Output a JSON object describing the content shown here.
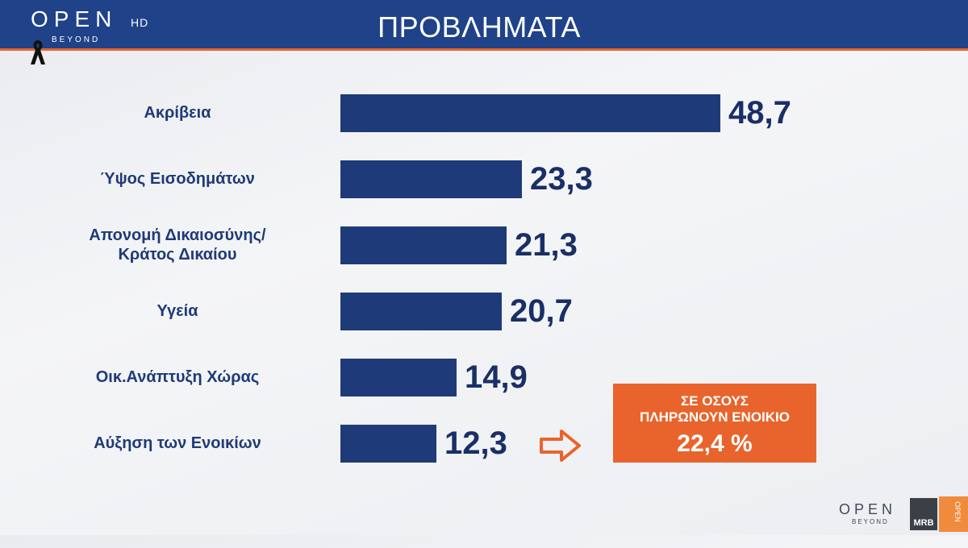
{
  "header": {
    "title": "ΠΡΟΒΛΗΜΑΤΑ",
    "logo": "OPEN",
    "logo_hd": "HD",
    "logo_sub": "BEYOND"
  },
  "chart_data": {
    "type": "bar",
    "orientation": "horizontal",
    "title": "ΠΡΟΒΛΗΜΑΤΑ",
    "categories": [
      "Ακρίβεια",
      "Ύψος Εισοδημάτων",
      "Απονομή Δικαιοσύνης/ Κράτος Δικαίου",
      "Υγεία",
      "Οικ.Ανάπτυξη Χώρας",
      "Αύξηση των Ενοικίων"
    ],
    "values": [
      48.7,
      23.3,
      21.3,
      20.7,
      14.9,
      12.3
    ],
    "value_labels": [
      "48,7",
      "23,3",
      "21,3",
      "20,7",
      "14,9",
      "12,3"
    ],
    "bar_color": "#1f3a78",
    "grid": false
  },
  "callout": {
    "line1": "ΣΕ ΟΣΟΥΣ",
    "line2": "ΠΛΗΡΩΝΟΥΝ ΕΝΟΙΚΙΟ",
    "value": "22,4 %",
    "color": "#e8642c"
  },
  "watermark": {
    "open": "OPEN",
    "beyond": "BEYOND",
    "mrb": "MRB",
    "open_small": "OPEN"
  },
  "colors": {
    "header_bg": "#1f4289",
    "accent": "#e8642c"
  }
}
